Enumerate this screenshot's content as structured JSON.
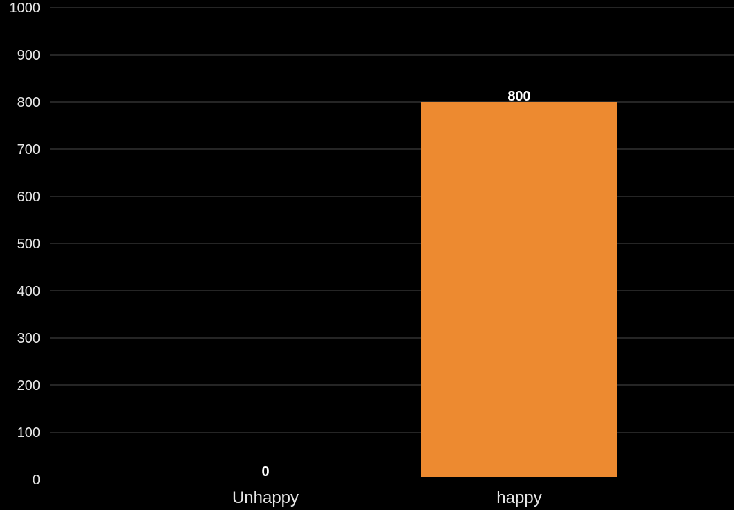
{
  "chart_data": {
    "type": "bar",
    "categories": [
      "Unhappy",
      "happy"
    ],
    "values": [
      0,
      800
    ],
    "data_labels": [
      "0",
      "800"
    ],
    "ylim": [
      0,
      1000
    ],
    "yticks": [
      0,
      100,
      200,
      300,
      400,
      500,
      600,
      700,
      800,
      900,
      1000
    ],
    "ytick_labels": [
      "0",
      "100",
      "200",
      "300",
      "400",
      "500",
      "600",
      "700",
      "800",
      "900",
      "1000"
    ],
    "title": "",
    "xlabel": "",
    "ylabel": "",
    "grid": true,
    "legend": "none",
    "colors": {
      "background": "#000000",
      "bar": "#ED8A30",
      "grid": "#4a4a4a",
      "text": "#e6e6e6",
      "data_label": "#ffffff"
    }
  }
}
